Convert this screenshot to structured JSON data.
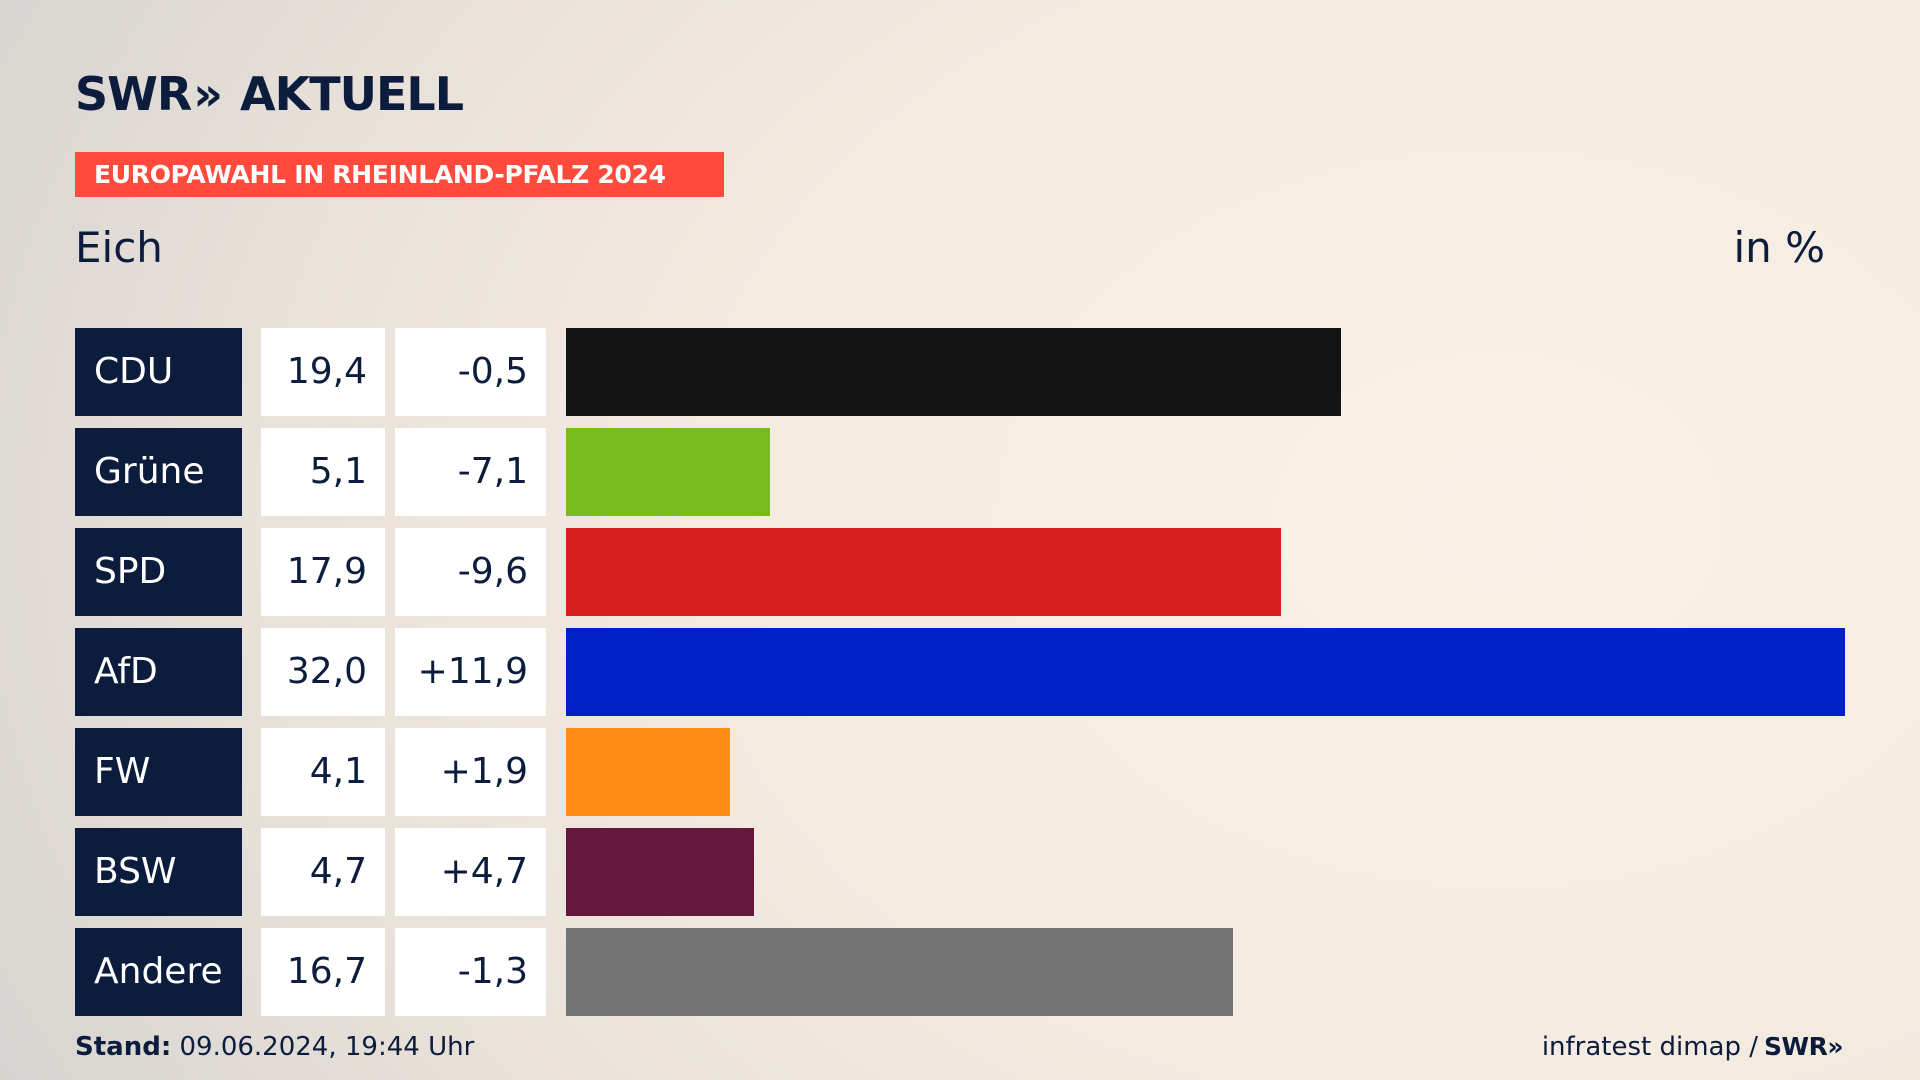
{
  "header": {
    "logo_brand": "SWR",
    "logo_chevrons": "»",
    "logo_product": "AKTUELL",
    "banner": "EUROPAWAHL IN RHEINLAND-PFALZ 2024",
    "place": "Eich",
    "unit": "in %"
  },
  "footer": {
    "stand_label": "Stand:",
    "stand_value": " 09.06.2024, 19:44 Uhr",
    "source": "infratest dimap /",
    "source_logo": "SWR»"
  },
  "chart_data": {
    "type": "bar",
    "orientation": "horizontal",
    "unit": "in %",
    "xlim": [
      0,
      32.0
    ],
    "rows": [
      {
        "party": "CDU",
        "value": 19.4,
        "value_label": "19,4",
        "change_label": "-0,5",
        "color": "#141414"
      },
      {
        "party": "Grüne",
        "value": 5.1,
        "value_label": "5,1",
        "change_label": "-7,1",
        "color": "#78bc1e"
      },
      {
        "party": "SPD",
        "value": 17.9,
        "value_label": "17,9",
        "change_label": "-9,6",
        "color": "#d71f1f"
      },
      {
        "party": "AfD",
        "value": 32.0,
        "value_label": "32,0",
        "change_label": "+11,9",
        "color": "#0021c8"
      },
      {
        "party": "FW",
        "value": 4.1,
        "value_label": "4,1",
        "change_label": "+1,9",
        "color": "#ff8c14"
      },
      {
        "party": "BSW",
        "value": 4.7,
        "value_label": "4,7",
        "change_label": "+4,7",
        "color": "#66173c"
      },
      {
        "party": "Andere",
        "value": 16.7,
        "value_label": "16,7",
        "change_label": "-1,3",
        "color": "#737373"
      }
    ]
  }
}
